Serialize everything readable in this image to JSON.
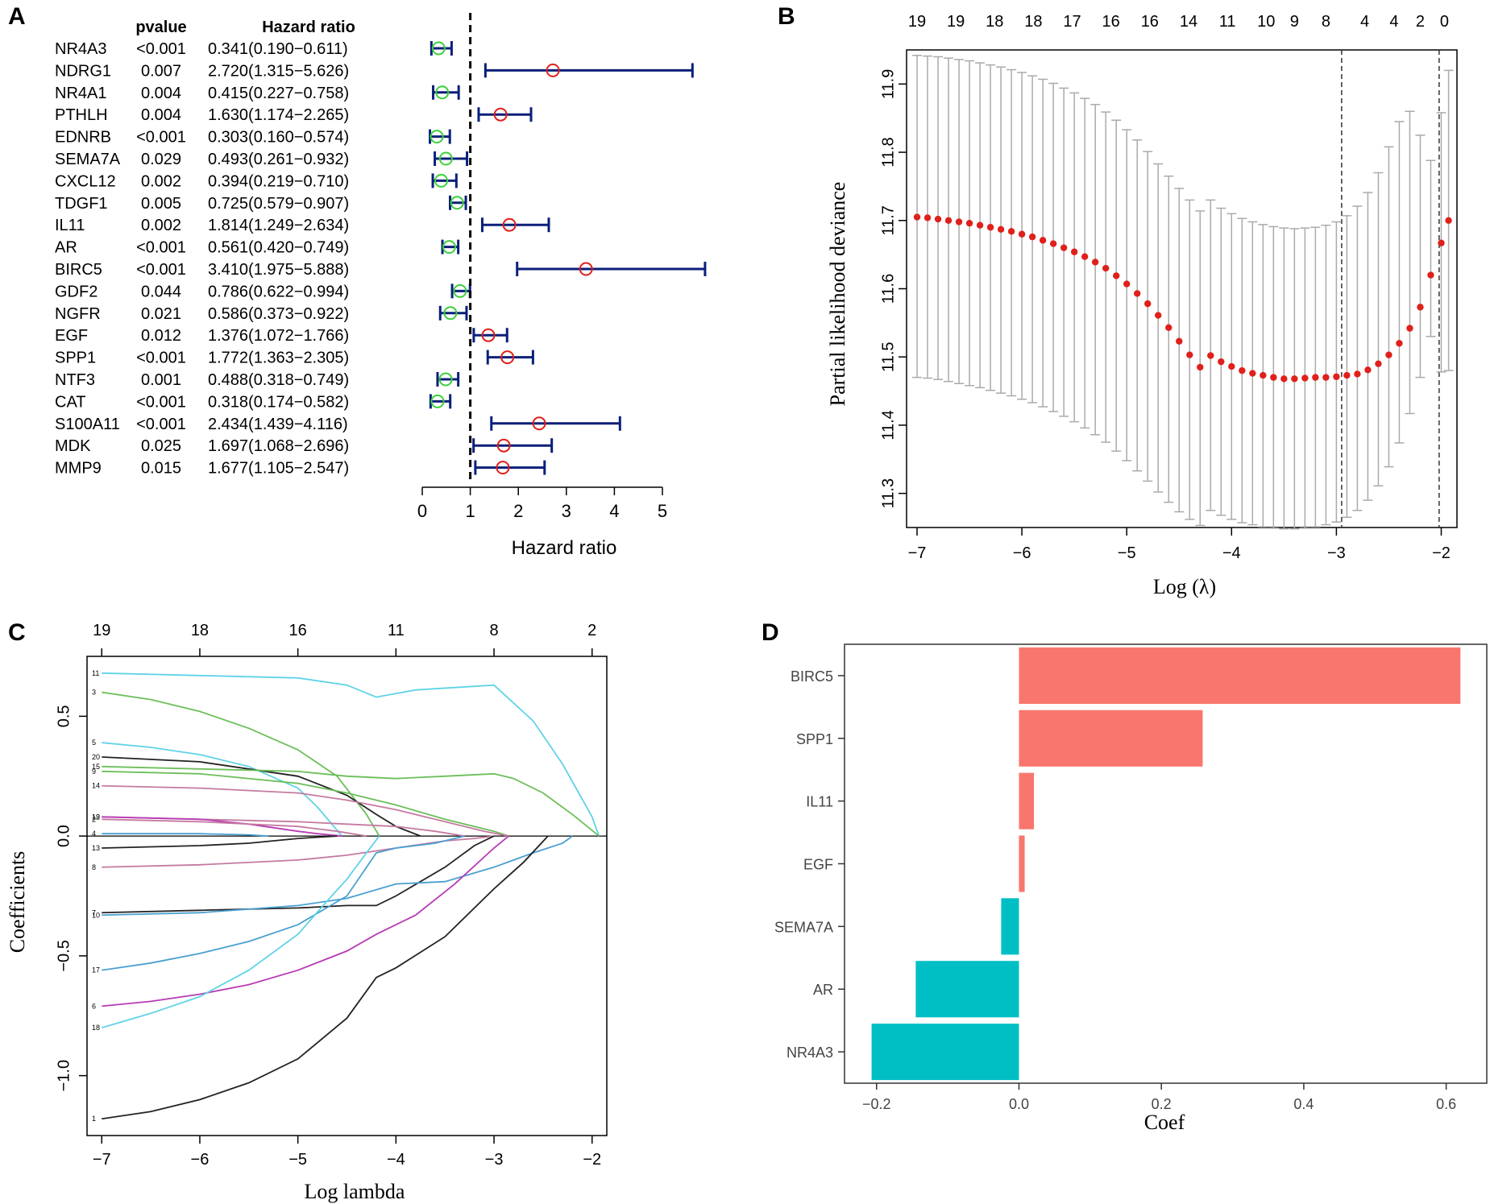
{
  "chart_data": [
    {
      "panel": "A",
      "type": "forest",
      "column_headers": {
        "pvalue": "pvalue",
        "hr": "Hazard ratio"
      },
      "rows": [
        {
          "gene": "NR4A3",
          "pvalue": "<0.001",
          "hr_text": "0.341(0.190−0.611)",
          "hr": 0.341,
          "lo": 0.19,
          "hi": 0.611
        },
        {
          "gene": "NDRG1",
          "pvalue": "0.007",
          "hr_text": "2.720(1.315−5.626)",
          "hr": 2.72,
          "lo": 1.315,
          "hi": 5.626
        },
        {
          "gene": "NR4A1",
          "pvalue": "0.004",
          "hr_text": "0.415(0.227−0.758)",
          "hr": 0.415,
          "lo": 0.227,
          "hi": 0.758
        },
        {
          "gene": "PTHLH",
          "pvalue": "0.004",
          "hr_text": "1.630(1.174−2.265)",
          "hr": 1.63,
          "lo": 1.174,
          "hi": 2.265
        },
        {
          "gene": "EDNRB",
          "pvalue": "<0.001",
          "hr_text": "0.303(0.160−0.574)",
          "hr": 0.303,
          "lo": 0.16,
          "hi": 0.574
        },
        {
          "gene": "SEMA7A",
          "pvalue": "0.029",
          "hr_text": "0.493(0.261−0.932)",
          "hr": 0.493,
          "lo": 0.261,
          "hi": 0.932
        },
        {
          "gene": "CXCL12",
          "pvalue": "0.002",
          "hr_text": "0.394(0.219−0.710)",
          "hr": 0.394,
          "lo": 0.219,
          "hi": 0.71
        },
        {
          "gene": "TDGF1",
          "pvalue": "0.005",
          "hr_text": "0.725(0.579−0.907)",
          "hr": 0.725,
          "lo": 0.579,
          "hi": 0.907
        },
        {
          "gene": "IL11",
          "pvalue": "0.002",
          "hr_text": "1.814(1.249−2.634)",
          "hr": 1.814,
          "lo": 1.249,
          "hi": 2.634
        },
        {
          "gene": "AR",
          "pvalue": "<0.001",
          "hr_text": "0.561(0.420−0.749)",
          "hr": 0.561,
          "lo": 0.42,
          "hi": 0.749
        },
        {
          "gene": "BIRC5",
          "pvalue": "<0.001",
          "hr_text": "3.410(1.975−5.888)",
          "hr": 3.41,
          "lo": 1.975,
          "hi": 5.888
        },
        {
          "gene": "GDF2",
          "pvalue": "0.044",
          "hr_text": "0.786(0.622−0.994)",
          "hr": 0.786,
          "lo": 0.622,
          "hi": 0.994
        },
        {
          "gene": "NGFR",
          "pvalue": "0.021",
          "hr_text": "0.586(0.373−0.922)",
          "hr": 0.586,
          "lo": 0.373,
          "hi": 0.922
        },
        {
          "gene": "EGF",
          "pvalue": "0.012",
          "hr_text": "1.376(1.072−1.766)",
          "hr": 1.376,
          "lo": 1.072,
          "hi": 1.766
        },
        {
          "gene": "SPP1",
          "pvalue": "<0.001",
          "hr_text": "1.772(1.363−2.305)",
          "hr": 1.772,
          "lo": 1.363,
          "hi": 2.305
        },
        {
          "gene": "NTF3",
          "pvalue": "0.001",
          "hr_text": "0.488(0.318−0.749)",
          "hr": 0.488,
          "lo": 0.318,
          "hi": 0.749
        },
        {
          "gene": "CAT",
          "pvalue": "<0.001",
          "hr_text": "0.318(0.174−0.582)",
          "hr": 0.318,
          "lo": 0.174,
          "hi": 0.582
        },
        {
          "gene": "S100A11",
          "pvalue": "<0.001",
          "hr_text": "2.434(1.439−4.116)",
          "hr": 2.434,
          "lo": 1.439,
          "hi": 4.116
        },
        {
          "gene": "MDK",
          "pvalue": "0.025",
          "hr_text": "1.697(1.068−2.696)",
          "hr": 1.697,
          "lo": 1.068,
          "hi": 2.696
        },
        {
          "gene": "MMP9",
          "pvalue": "0.015",
          "hr_text": "1.677(1.105−2.547)",
          "hr": 1.677,
          "lo": 1.105,
          "hi": 2.547
        }
      ],
      "xlabel": "Hazard ratio",
      "xticks": [
        0,
        1,
        2,
        3,
        4,
        5
      ],
      "xlim": [
        0,
        5
      ],
      "reference_line": 1,
      "colors": {
        "ci": "#0b1f7a",
        "risk": "#e0201b",
        "protective": "#3bd13b"
      }
    },
    {
      "panel": "B",
      "type": "scatter",
      "xlabel": "Log (λ)",
      "ylabel": "Partial likelihood deviance",
      "xticks": [
        -7,
        -6,
        -5,
        -4,
        -3,
        -2
      ],
      "yticks": [
        11.3,
        11.4,
        11.5,
        11.6,
        11.7,
        11.8,
        11.9
      ],
      "xlim": [
        -7.1,
        -1.85
      ],
      "ylim": [
        11.25,
        11.95
      ],
      "top_ticks": [
        {
          "x": -7.0,
          "label": "19"
        },
        {
          "x": -6.63,
          "label": "19"
        },
        {
          "x": -6.26,
          "label": "18"
        },
        {
          "x": -5.89,
          "label": "18"
        },
        {
          "x": -5.52,
          "label": "17"
        },
        {
          "x": -5.15,
          "label": "16"
        },
        {
          "x": -4.78,
          "label": "16"
        },
        {
          "x": -4.41,
          "label": "14"
        },
        {
          "x": -4.04,
          "label": "11"
        },
        {
          "x": -3.67,
          "label": "10"
        },
        {
          "x": -3.4,
          "label": "9"
        },
        {
          "x": -3.1,
          "label": "8"
        },
        {
          "x": -2.73,
          "label": "4"
        },
        {
          "x": -2.45,
          "label": "4"
        },
        {
          "x": -2.2,
          "label": "2"
        },
        {
          "x": -1.97,
          "label": "0"
        }
      ],
      "vlines": [
        -2.95,
        -2.02
      ],
      "cv_curve": {
        "x": [
          -7.0,
          -6.9,
          -6.8,
          -6.7,
          -6.6,
          -6.5,
          -6.4,
          -6.3,
          -6.2,
          -6.1,
          -6.0,
          -5.9,
          -5.8,
          -5.7,
          -5.6,
          -5.5,
          -5.4,
          -5.3,
          -5.2,
          -5.1,
          -5.0,
          -4.9,
          -4.8,
          -4.7,
          -4.6,
          -4.5,
          -4.4,
          -4.3,
          -4.2,
          -4.1,
          -4.0,
          -3.9,
          -3.8,
          -3.7,
          -3.6,
          -3.5,
          -3.4,
          -3.3,
          -3.2,
          -3.1,
          -3.0,
          -2.9,
          -2.8,
          -2.7,
          -2.6,
          -2.5,
          -2.4,
          -2.3,
          -2.2,
          -2.1,
          -2.0,
          -1.93
        ],
        "mean": [
          11.705,
          11.704,
          11.702,
          11.7,
          11.698,
          11.696,
          11.693,
          11.69,
          11.687,
          11.684,
          11.68,
          11.676,
          11.671,
          11.666,
          11.66,
          11.654,
          11.647,
          11.639,
          11.63,
          11.619,
          11.607,
          11.593,
          11.578,
          11.561,
          11.543,
          11.523,
          11.503,
          11.485,
          11.502,
          11.493,
          11.486,
          11.48,
          11.476,
          11.473,
          11.47,
          11.468,
          11.468,
          11.469,
          11.47,
          11.47,
          11.471,
          11.473,
          11.475,
          11.481,
          11.49,
          11.503,
          11.52,
          11.542,
          11.573,
          11.62,
          11.667,
          11.7
        ],
        "lower": [
          11.47,
          11.469,
          11.467,
          11.464,
          11.461,
          11.458,
          11.455,
          11.451,
          11.447,
          11.443,
          11.438,
          11.433,
          11.427,
          11.42,
          11.413,
          11.405,
          11.396,
          11.386,
          11.375,
          11.362,
          11.348,
          11.333,
          11.318,
          11.302,
          11.287,
          11.273,
          11.262,
          11.253,
          11.275,
          11.268,
          11.262,
          11.257,
          11.254,
          11.251,
          11.249,
          11.248,
          11.248,
          11.249,
          11.251,
          11.254,
          11.258,
          11.265,
          11.275,
          11.29,
          11.311,
          11.339,
          11.374,
          11.417,
          11.47,
          11.53,
          11.478,
          11.48
        ],
        "upper": [
          11.942,
          11.941,
          11.94,
          11.938,
          11.936,
          11.934,
          11.931,
          11.928,
          11.925,
          11.921,
          11.917,
          11.912,
          11.907,
          11.901,
          11.894,
          11.887,
          11.879,
          11.87,
          11.859,
          11.847,
          11.833,
          11.818,
          11.801,
          11.783,
          11.765,
          11.747,
          11.73,
          11.714,
          11.73,
          11.718,
          11.71,
          11.703,
          11.698,
          11.694,
          11.691,
          11.689,
          11.688,
          11.689,
          11.69,
          11.693,
          11.698,
          11.707,
          11.721,
          11.741,
          11.77,
          11.808,
          11.845,
          11.86,
          11.825,
          11.788,
          11.858,
          11.92
        ]
      },
      "colors": {
        "points": "#e0201b",
        "errorbars": "#aaaaaa"
      }
    },
    {
      "panel": "C",
      "type": "line",
      "xlabel": "Log lambda",
      "ylabel": "Coefficients",
      "xticks": [
        -7,
        -6,
        -5,
        -4,
        -3,
        -2
      ],
      "yticks": [
        -1.0,
        -0.5,
        0.0,
        0.5
      ],
      "ytick_labels": [
        "−1.0",
        "−0.5",
        "0.0",
        "0.5"
      ],
      "xlim": [
        -7.15,
        -1.85
      ],
      "ylim": [
        -1.25,
        0.75
      ],
      "top_ticks": [
        {
          "x": -7.0,
          "label": "19"
        },
        {
          "x": -6.0,
          "label": "18"
        },
        {
          "x": -5.0,
          "label": "16"
        },
        {
          "x": -4.0,
          "label": "11"
        },
        {
          "x": -3.0,
          "label": "8"
        },
        {
          "x": -2.0,
          "label": "2"
        }
      ],
      "series": [
        {
          "label": "11",
          "color": "#5fd3e6",
          "x": [
            -7.0,
            -6.0,
            -5.0,
            -4.5,
            -4.2,
            -3.8,
            -3.4,
            -3.0,
            -2.6,
            -2.3,
            -2.0,
            -1.93
          ],
          "y": [
            0.68,
            0.67,
            0.66,
            0.63,
            0.58,
            0.61,
            0.62,
            0.63,
            0.48,
            0.3,
            0.08,
            0.0
          ]
        },
        {
          "label": "3",
          "color": "#6cbf5a",
          "x": [
            -7.0,
            -6.5,
            -6.0,
            -5.5,
            -5.0,
            -4.6,
            -4.3,
            -4.17
          ],
          "y": [
            0.6,
            0.57,
            0.52,
            0.45,
            0.36,
            0.25,
            0.09,
            0.0
          ]
        },
        {
          "label": "5",
          "color": "#5fd3e6",
          "x": [
            -7.0,
            -6.5,
            -6.0,
            -5.5,
            -5.0,
            -4.8,
            -4.55
          ],
          "y": [
            0.39,
            0.37,
            0.34,
            0.29,
            0.2,
            0.12,
            0.0
          ]
        },
        {
          "label": "20",
          "color": "#222222",
          "x": [
            -7.0,
            -6.0,
            -5.0,
            -4.5,
            -4.2,
            -4.0,
            -3.75
          ],
          "y": [
            0.33,
            0.31,
            0.25,
            0.17,
            0.09,
            0.04,
            0.0
          ]
        },
        {
          "label": "15",
          "color": "#6cbf5a",
          "x": [
            -7.0,
            -6.0,
            -5.0,
            -4.5,
            -4.0,
            -3.5,
            -3.0,
            -2.8,
            -2.5,
            -2.2,
            -1.93
          ],
          "y": [
            0.29,
            0.28,
            0.27,
            0.25,
            0.24,
            0.25,
            0.26,
            0.24,
            0.18,
            0.09,
            0.0
          ]
        },
        {
          "label": "9",
          "color": "#6cbf5a",
          "x": [
            -7.0,
            -6.0,
            -5.0,
            -4.5,
            -4.0,
            -3.5,
            -3.0,
            -2.85
          ],
          "y": [
            0.27,
            0.26,
            0.22,
            0.18,
            0.13,
            0.07,
            0.02,
            0.0
          ]
        },
        {
          "label": "14",
          "color": "#c57aa0",
          "x": [
            -7.0,
            -6.0,
            -5.0,
            -4.5,
            -4.0,
            -3.5,
            -3.1,
            -2.85
          ],
          "y": [
            0.21,
            0.2,
            0.18,
            0.15,
            0.11,
            0.06,
            0.02,
            0.0
          ]
        },
        {
          "label": "12",
          "color": "#c57aa0",
          "x": [
            -7.0,
            -6.0,
            -5.0,
            -4.5,
            -4.0,
            -3.6,
            -3.3
          ],
          "y": [
            0.08,
            0.07,
            0.06,
            0.05,
            0.04,
            0.02,
            0.0
          ]
        },
        {
          "label": "19",
          "color": "#b73bb5",
          "x": [
            -7.0,
            -6.0,
            -5.5,
            -5.0,
            -4.8,
            -4.55
          ],
          "y": [
            0.08,
            0.07,
            0.05,
            0.02,
            0.01,
            0.0
          ]
        },
        {
          "label": "2",
          "color": "#c57aa0",
          "x": [
            -7.0,
            -6.0,
            -5.0,
            -4.6,
            -4.3
          ],
          "y": [
            0.07,
            0.06,
            0.04,
            0.02,
            0.0
          ]
        },
        {
          "label": "4",
          "color": "#4aa0d0",
          "x": [
            -7.0,
            -6.0,
            -5.5,
            -5.3
          ],
          "y": [
            0.01,
            0.01,
            0.005,
            0.0
          ]
        },
        {
          "label": "13",
          "color": "#222222",
          "x": [
            -7.0,
            -6.0,
            -5.5,
            -5.0,
            -4.6
          ],
          "y": [
            -0.05,
            -0.04,
            -0.03,
            -0.01,
            0.0
          ]
        },
        {
          "label": "8",
          "color": "#c57aa0",
          "x": [
            -7.0,
            -6.0,
            -5.0,
            -4.5,
            -4.0,
            -3.5,
            -3.2,
            -3.0
          ],
          "y": [
            -0.13,
            -0.12,
            -0.1,
            -0.08,
            -0.05,
            -0.02,
            -0.01,
            0.0
          ]
        },
        {
          "label": "7",
          "color": "#222222",
          "x": [
            -7.0,
            -6.0,
            -5.0,
            -4.5,
            -4.2,
            -4.0,
            -3.5,
            -3.2,
            -3.0
          ],
          "y": [
            -0.32,
            -0.31,
            -0.3,
            -0.29,
            -0.29,
            -0.25,
            -0.13,
            -0.04,
            0.0
          ]
        },
        {
          "label": "10",
          "color": "#4aa0d0",
          "x": [
            -7.0,
            -6.0,
            -5.0,
            -4.5,
            -4.0,
            -3.5,
            -3.0,
            -2.6,
            -2.3,
            -2.2
          ],
          "y": [
            -0.33,
            -0.32,
            -0.29,
            -0.26,
            -0.2,
            -0.19,
            -0.13,
            -0.07,
            -0.03,
            0.0
          ]
        },
        {
          "label": "17",
          "color": "#4aa0d0",
          "x": [
            -7.0,
            -6.5,
            -6.0,
            -5.5,
            -5.0,
            -4.5,
            -4.2,
            -4.0,
            -3.6,
            -3.3
          ],
          "y": [
            -0.56,
            -0.53,
            -0.49,
            -0.44,
            -0.37,
            -0.25,
            -0.07,
            -0.05,
            -0.03,
            0.0
          ]
        },
        {
          "label": "6",
          "color": "#b73bb5",
          "x": [
            -7.0,
            -6.5,
            -6.0,
            -5.5,
            -5.0,
            -4.5,
            -4.2,
            -3.8,
            -3.4,
            -3.0,
            -2.85
          ],
          "y": [
            -0.71,
            -0.69,
            -0.66,
            -0.62,
            -0.56,
            -0.48,
            -0.41,
            -0.33,
            -0.2,
            -0.05,
            0.0
          ]
        },
        {
          "label": "18",
          "color": "#5fd3e6",
          "x": [
            -7.0,
            -6.5,
            -6.0,
            -5.5,
            -5.0,
            -4.7,
            -4.5,
            -4.3,
            -4.17
          ],
          "y": [
            -0.8,
            -0.74,
            -0.67,
            -0.56,
            -0.41,
            -0.27,
            -0.18,
            -0.07,
            0.0
          ]
        },
        {
          "label": "1",
          "color": "#222222",
          "x": [
            -7.0,
            -6.5,
            -6.0,
            -5.5,
            -5.0,
            -4.5,
            -4.2,
            -4.0,
            -3.5,
            -3.0,
            -2.7,
            -2.45
          ],
          "y": [
            -1.18,
            -1.15,
            -1.1,
            -1.03,
            -0.93,
            -0.76,
            -0.59,
            -0.55,
            -0.42,
            -0.22,
            -0.11,
            0.0
          ]
        }
      ]
    },
    {
      "panel": "D",
      "type": "bar",
      "orientation": "horizontal",
      "categories": [
        "BIRC5",
        "SPP1",
        "IL11",
        "EGF",
        "SEMA7A",
        "AR",
        "NR4A3"
      ],
      "values": [
        0.62,
        0.258,
        0.021,
        0.008,
        -0.025,
        -0.145,
        -0.207
      ],
      "xlabel": "Coef",
      "xticks": [
        -0.2,
        0.0,
        0.2,
        0.4,
        0.6
      ],
      "xtick_labels": [
        "−0.2",
        "0.0",
        "0.2",
        "0.4",
        "0.6"
      ],
      "xlim": [
        -0.245,
        0.657
      ],
      "colors": {
        "positive": "#f8766d",
        "negative": "#00bfc4"
      }
    }
  ]
}
